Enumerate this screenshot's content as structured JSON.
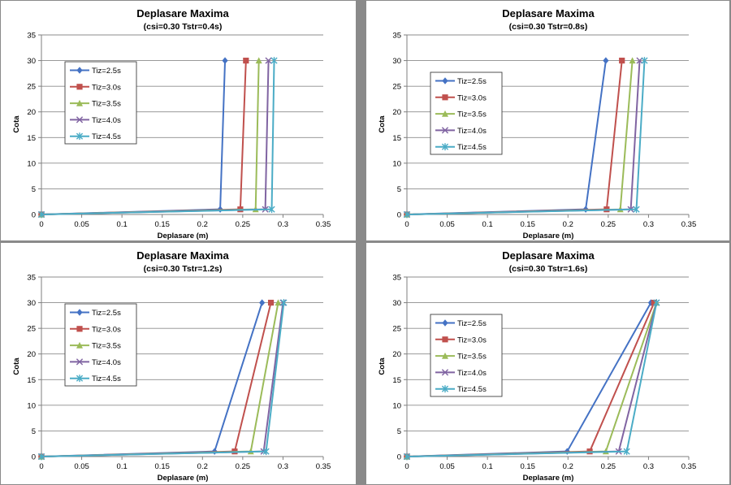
{
  "colors": {
    "series": [
      "#4472C4",
      "#C0504D",
      "#9BBB59",
      "#8064A2",
      "#4BACC6"
    ],
    "gridline": "#8c8c8c",
    "axis": "#7f7f7f",
    "text": "#000000"
  },
  "chart_data": [
    {
      "type": "line",
      "title": "Deplasare Maxima",
      "subtitle": "(csi=0.30  Tstr=0.4s)",
      "xlabel": "Deplasare (m)",
      "ylabel": "Cota",
      "xlim": [
        0,
        0.35
      ],
      "ylim": [
        0,
        35
      ],
      "xticks": [
        "0",
        "0.05",
        "0.1",
        "0.15",
        "0.2",
        "0.25",
        "0.3",
        "0.35"
      ],
      "yticks": [
        "0",
        "5",
        "10",
        "15",
        "20",
        "25",
        "30",
        "35"
      ],
      "grid": "horizontal",
      "legend_position": "left",
      "series": [
        {
          "name": "Tiz=2.5s",
          "marker": "diamond",
          "points": [
            [
              0,
              0
            ],
            [
              0.222,
              1
            ],
            [
              0.228,
              30
            ]
          ]
        },
        {
          "name": "Tiz=3.0s",
          "marker": "square",
          "points": [
            [
              0,
              0
            ],
            [
              0.247,
              1
            ],
            [
              0.254,
              30
            ]
          ]
        },
        {
          "name": "Tiz=3.5s",
          "marker": "triangle",
          "points": [
            [
              0,
              0
            ],
            [
              0.266,
              1
            ],
            [
              0.27,
              30
            ]
          ]
        },
        {
          "name": "Tiz=4.0s",
          "marker": "x",
          "points": [
            [
              0,
              0
            ],
            [
              0.278,
              1
            ],
            [
              0.282,
              30
            ]
          ]
        },
        {
          "name": "Tiz=4.5s",
          "marker": "star",
          "points": [
            [
              0,
              0
            ],
            [
              0.286,
              1
            ],
            [
              0.289,
              30
            ]
          ]
        }
      ]
    },
    {
      "type": "line",
      "title": "Deplasare Maxima",
      "subtitle": "(csi=0.30  Tstr=0.8s)",
      "xlabel": "Deplasare (m)",
      "ylabel": "Cota",
      "xlim": [
        0,
        0.35
      ],
      "ylim": [
        0,
        35
      ],
      "xticks": [
        "0",
        "0.05",
        "0.1",
        "0.15",
        "0.2",
        "0.25",
        "0.3",
        "0.35"
      ],
      "yticks": [
        "0",
        "5",
        "10",
        "15",
        "20",
        "25",
        "30",
        "35"
      ],
      "grid": "horizontal",
      "legend_position": "left",
      "series": [
        {
          "name": "Tiz=2.5s",
          "marker": "diamond",
          "points": [
            [
              0,
              0
            ],
            [
              0.222,
              1
            ],
            [
              0.247,
              30
            ]
          ]
        },
        {
          "name": "Tiz=3.0s",
          "marker": "square",
          "points": [
            [
              0,
              0
            ],
            [
              0.248,
              1
            ],
            [
              0.267,
              30
            ]
          ]
        },
        {
          "name": "Tiz=3.5s",
          "marker": "triangle",
          "points": [
            [
              0,
              0
            ],
            [
              0.265,
              1
            ],
            [
              0.28,
              30
            ]
          ]
        },
        {
          "name": "Tiz=4.0s",
          "marker": "x",
          "points": [
            [
              0,
              0
            ],
            [
              0.278,
              1
            ],
            [
              0.289,
              30
            ]
          ]
        },
        {
          "name": "Tiz=4.5s",
          "marker": "star",
          "points": [
            [
              0,
              0
            ],
            [
              0.285,
              1
            ],
            [
              0.295,
              30
            ]
          ]
        }
      ]
    },
    {
      "type": "line",
      "title": "Deplasare Maxima",
      "subtitle": "(csi=0.30  Tstr=1.2s)",
      "xlabel": "Deplasare (m)",
      "ylabel": "Cota",
      "xlim": [
        0,
        0.35
      ],
      "ylim": [
        0,
        35
      ],
      "xticks": [
        "0",
        "0.05",
        "0.1",
        "0.15",
        "0.2",
        "0.25",
        "0.3",
        "0.35"
      ],
      "yticks": [
        "0",
        "5",
        "10",
        "15",
        "20",
        "25",
        "30",
        "35"
      ],
      "grid": "horizontal",
      "legend_position": "left",
      "series": [
        {
          "name": "Tiz=2.5s",
          "marker": "diamond",
          "points": [
            [
              0,
              0
            ],
            [
              0.215,
              1
            ],
            [
              0.274,
              30
            ]
          ]
        },
        {
          "name": "Tiz=3.0s",
          "marker": "square",
          "points": [
            [
              0,
              0
            ],
            [
              0.24,
              1
            ],
            [
              0.285,
              30
            ]
          ]
        },
        {
          "name": "Tiz=3.5s",
          "marker": "triangle",
          "points": [
            [
              0,
              0
            ],
            [
              0.26,
              1
            ],
            [
              0.294,
              30
            ]
          ]
        },
        {
          "name": "Tiz=4.0s",
          "marker": "x",
          "points": [
            [
              0,
              0
            ],
            [
              0.276,
              1
            ],
            [
              0.3,
              30
            ]
          ]
        },
        {
          "name": "Tiz=4.5s",
          "marker": "star",
          "points": [
            [
              0,
              0
            ],
            [
              0.279,
              1
            ],
            [
              0.301,
              30
            ]
          ]
        }
      ]
    },
    {
      "type": "line",
      "title": "Deplasare Maxima",
      "subtitle": "(csi=0.30  Tstr=1.6s)",
      "xlabel": "Deplasare (m)",
      "ylabel": "Cota",
      "xlim": [
        0,
        0.35
      ],
      "ylim": [
        0,
        35
      ],
      "xticks": [
        "0",
        "0.05",
        "0.1",
        "0.15",
        "0.2",
        "0.25",
        "0.3",
        "0.35"
      ],
      "yticks": [
        "0",
        "5",
        "10",
        "15",
        "20",
        "25",
        "30",
        "35"
      ],
      "grid": "horizontal",
      "legend_position": "left",
      "series": [
        {
          "name": "Tiz=2.5s",
          "marker": "diamond",
          "points": [
            [
              0,
              0
            ],
            [
              0.199,
              1
            ],
            [
              0.303,
              30
            ]
          ]
        },
        {
          "name": "Tiz=3.0s",
          "marker": "square",
          "points": [
            [
              0,
              0
            ],
            [
              0.227,
              1
            ],
            [
              0.307,
              30
            ]
          ]
        },
        {
          "name": "Tiz=3.5s",
          "marker": "triangle",
          "points": [
            [
              0,
              0
            ],
            [
              0.247,
              1
            ],
            [
              0.31,
              30
            ]
          ]
        },
        {
          "name": "Tiz=4.0s",
          "marker": "x",
          "points": [
            [
              0,
              0
            ],
            [
              0.263,
              1
            ],
            [
              0.31,
              30
            ]
          ]
        },
        {
          "name": "Tiz=4.5s",
          "marker": "star",
          "points": [
            [
              0,
              0
            ],
            [
              0.273,
              1
            ],
            [
              0.31,
              30
            ]
          ]
        }
      ]
    }
  ]
}
